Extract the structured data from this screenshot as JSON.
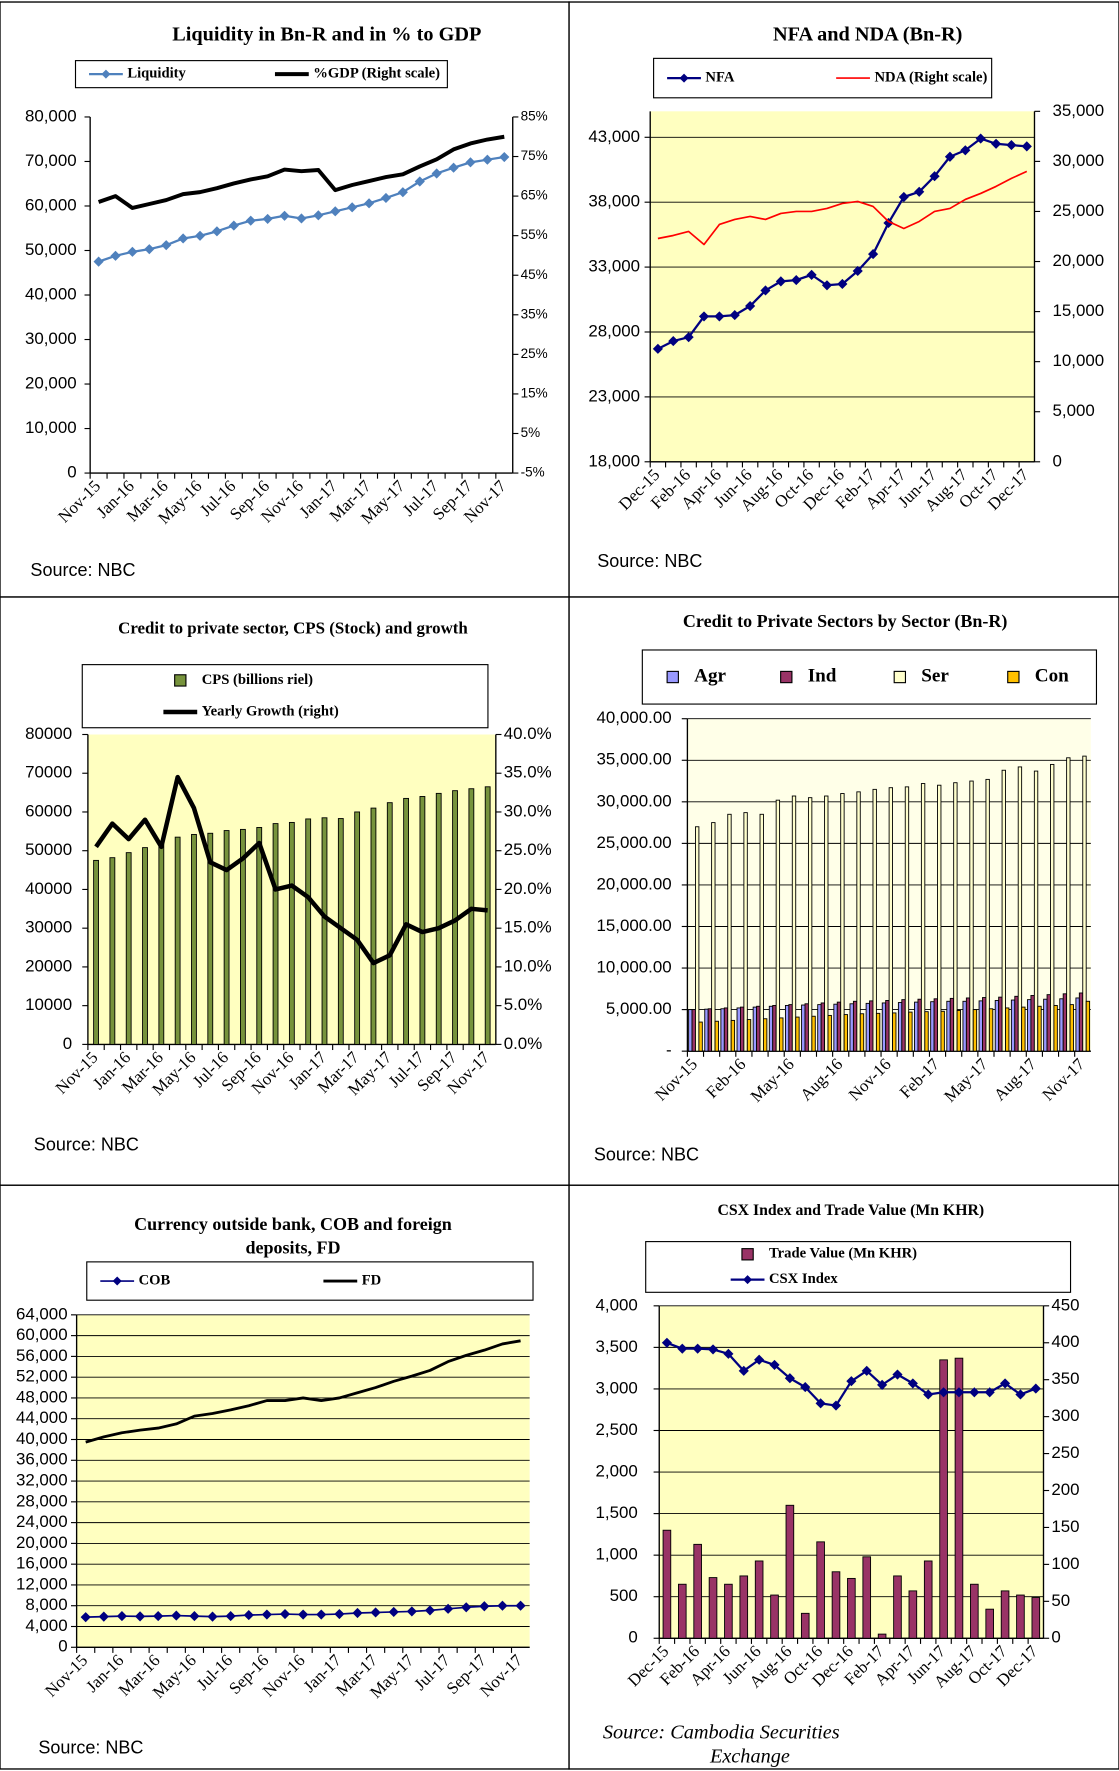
{
  "chart_data": [
    {
      "type": "line",
      "title": "Liquidity in Bn-R and in % to GDP",
      "categories": [
        "Nov-15",
        null,
        "Jan-16",
        null,
        "Mar-16",
        null,
        "May-16",
        null,
        "Jul-16",
        null,
        "Sep-16",
        null,
        "Nov-16",
        null,
        "Jan-17",
        null,
        "Mar-17",
        null,
        "May-17",
        null,
        "Jul-17",
        null,
        "Sep-17",
        null,
        "Nov-17"
      ],
      "series": [
        {
          "name": "Liquidity",
          "color": "#4f81bd",
          "marker": "diamond",
          "values": [
            47500,
            48800,
            49700,
            50300,
            51200,
            52700,
            53300,
            54300,
            55600,
            56700,
            57100,
            57800,
            57200,
            57900,
            58800,
            59700,
            60600,
            61800,
            63100,
            65500,
            67300,
            68600,
            69800,
            70400,
            71000
          ]
        },
        {
          "name": "%GDP (Right scale)",
          "color": "#000000",
          "axis": "y2",
          "values": [
            63.5,
            65,
            62,
            63,
            64,
            65.5,
            66,
            67,
            68.2,
            69.2,
            70,
            71.7,
            71.3,
            71.6,
            66.5,
            67.8,
            68.8,
            69.8,
            70.5,
            72.5,
            74.3,
            76.8,
            78.3,
            79.3,
            80
          ]
        }
      ],
      "ylim": [
        0,
        80000
      ],
      "yticks": [
        0,
        {
          "value": 10000,
          "label": "10,000"
        },
        {
          "value": 20000,
          "label": "20,000"
        },
        {
          "value": 30000,
          "label": "30,000"
        },
        {
          "value": 40000,
          "label": "40,000"
        },
        {
          "value": 50000,
          "label": "50,000"
        },
        {
          "value": 60000,
          "label": "60,000"
        },
        {
          "value": 70000,
          "label": "70,000"
        },
        {
          "value": 80000,
          "label": "80,000"
        }
      ],
      "y2lim": [
        -5,
        85
      ],
      "y2ticks": [
        {
          "value": -5,
          "label": "-5%"
        },
        {
          "value": 5,
          "label": "5%"
        },
        {
          "value": 15,
          "label": "15%"
        },
        {
          "value": 25,
          "label": "25%"
        },
        {
          "value": 35,
          "label": "35%"
        },
        {
          "value": 45,
          "label": "45%"
        },
        {
          "value": 55,
          "label": "55%"
        },
        {
          "value": 65,
          "label": "65%"
        },
        {
          "value": 75,
          "label": "75%"
        },
        {
          "value": 85,
          "label": "85%"
        }
      ],
      "grid": false,
      "source": "Source: NBC"
    },
    {
      "type": "line",
      "title": "NFA and NDA (Bn-R)",
      "categories": [
        "Dec-15",
        null,
        "Feb-16",
        null,
        "Apr-16",
        null,
        "Jun-16",
        null,
        "Aug-16",
        null,
        "Oct-16",
        null,
        "Dec-16",
        null,
        "Feb-17",
        null,
        "Apr-17",
        null,
        "Jun-17",
        null,
        "Aug-17",
        null,
        "Oct-17",
        null,
        "Dec-17"
      ],
      "series": [
        {
          "name": "NFA",
          "color": "#000080",
          "marker": "diamond",
          "values": [
            26700,
            27300,
            27600,
            29200,
            29200,
            29300,
            30000,
            31200,
            31900,
            32000,
            32400,
            31600,
            31700,
            32700,
            34000,
            36400,
            38400,
            38800,
            40000,
            41500,
            42000,
            42900,
            42500,
            42400,
            42300
          ]
        },
        {
          "name": "NDA (Right scale)",
          "color": "#ff0000",
          "axis": "y2",
          "values": [
            22300,
            22600,
            23000,
            21700,
            23700,
            24200,
            24500,
            24200,
            24800,
            25000,
            25000,
            25300,
            25800,
            26000,
            25500,
            24000,
            23300,
            24000,
            25000,
            25300,
            26200,
            26800,
            27500,
            28300,
            29000
          ]
        }
      ],
      "ylim": [
        18000,
        45000
      ],
      "yticks": [
        {
          "value": 18000,
          "label": "18,000"
        },
        {
          "value": 23000,
          "label": "23,000"
        },
        {
          "value": 28000,
          "label": "28,000"
        },
        {
          "value": 33000,
          "label": "33,000"
        },
        {
          "value": 38000,
          "label": "38,000"
        },
        {
          "value": 43000,
          "label": "43,000"
        }
      ],
      "y2lim": [
        0,
        35000
      ],
      "y2ticks": [
        0,
        {
          "value": 5000,
          "label": "5,000"
        },
        {
          "value": 10000,
          "label": "10,000"
        },
        {
          "value": 15000,
          "label": "15,000"
        },
        {
          "value": 20000,
          "label": "20,000"
        },
        {
          "value": 25000,
          "label": "25,000"
        },
        {
          "value": 30000,
          "label": "30,000"
        },
        {
          "value": 35000,
          "label": "35,000"
        }
      ],
      "grid": true,
      "plot_background": "#ffffc0",
      "source": "Source: NBC"
    },
    {
      "type": "bar",
      "title": "Credit to private sector, CPS (Stock) and growth",
      "categories": [
        "Nov-15",
        null,
        "Jan-16",
        null,
        "Mar-16",
        null,
        "May-16",
        null,
        "Jul-16",
        null,
        "Sep-16",
        null,
        "Nov-16",
        null,
        "Jan-17",
        null,
        "Mar-17",
        null,
        "May-17",
        null,
        "Jul-17",
        null,
        "Sep-17",
        null,
        "Nov-17"
      ],
      "series": [
        {
          "name": "CPS (billions riel)",
          "type": "bar",
          "color": "#77933c",
          "values": [
            47500,
            48200,
            49500,
            50800,
            51500,
            53500,
            54200,
            54500,
            55200,
            55500,
            56000,
            57000,
            57300,
            58200,
            58500,
            58300,
            60000,
            61000,
            62400,
            63500,
            64000,
            64800,
            65500,
            66000,
            66500
          ]
        },
        {
          "name": "Yearly Growth (right)",
          "type": "line",
          "color": "#000000",
          "axis": "y2",
          "values": [
            25.5,
            28.5,
            26.5,
            29,
            25.5,
            34.5,
            30.5,
            23.5,
            22.5,
            24,
            26,
            20,
            20.5,
            19,
            16.5,
            15,
            13.5,
            10.5,
            11.5,
            15.5,
            14.5,
            15,
            16,
            17.5,
            17.3
          ]
        }
      ],
      "ylim": [
        0,
        80000
      ],
      "yticks": [
        0,
        10000,
        20000,
        30000,
        40000,
        50000,
        60000,
        70000,
        80000
      ],
      "y2lim": [
        0,
        40
      ],
      "y2ticks": [
        {
          "value": 0,
          "label": "0.0%"
        },
        {
          "value": 5,
          "label": "5.0%"
        },
        {
          "value": 10,
          "label": "10.0%"
        },
        {
          "value": 15,
          "label": "15.0%"
        },
        {
          "value": 20,
          "label": "20.0%"
        },
        {
          "value": 25,
          "label": "25.0%"
        },
        {
          "value": 30,
          "label": "30.0%"
        },
        {
          "value": 35,
          "label": "35.0%"
        },
        {
          "value": 40,
          "label": "40.0%"
        }
      ],
      "grid": false,
      "plot_background": "#ffffc0",
      "source": "Source: NBC"
    },
    {
      "type": "bar",
      "title": "Credit to Private Sectors by Sector (Bn-R)",
      "categories": [
        "Nov-15",
        null,
        null,
        "Feb-16",
        null,
        null,
        "May-16",
        null,
        null,
        "Aug-16",
        null,
        null,
        "Nov-16",
        null,
        null,
        "Feb-17",
        null,
        null,
        "May-17",
        null,
        null,
        "Aug-17",
        null,
        null,
        "Nov-17"
      ],
      "series": [
        {
          "name": "Agr",
          "type": "bar",
          "color": "#9999ff",
          "values": [
            5000,
            5050,
            5100,
            5200,
            5300,
            5400,
            5500,
            5550,
            5600,
            5650,
            5700,
            5750,
            5800,
            5850,
            5900,
            5950,
            6000,
            6000,
            6050,
            6100,
            6150,
            6200,
            6250,
            6300,
            6400
          ]
        },
        {
          "name": "Ind",
          "type": "bar",
          "color": "#993366",
          "values": [
            5000,
            5100,
            5200,
            5300,
            5400,
            5500,
            5600,
            5700,
            5800,
            5900,
            6000,
            6050,
            6100,
            6200,
            6250,
            6300,
            6350,
            6400,
            6450,
            6500,
            6600,
            6700,
            6800,
            6900,
            7000
          ]
        },
        {
          "name": "Ser",
          "type": "bar",
          "color": "#ffffcc",
          "values": [
            27000,
            27500,
            28500,
            28700,
            28500,
            30200,
            30700,
            30500,
            30700,
            31000,
            31200,
            31500,
            31700,
            31800,
            32200,
            32000,
            32300,
            32500,
            32700,
            33800,
            34200,
            33700,
            34500,
            35300,
            35500
          ]
        },
        {
          "name": "Con",
          "type": "bar",
          "color": "#ffc000",
          "values": [
            3500,
            3600,
            3700,
            3800,
            3900,
            4000,
            4100,
            4200,
            4300,
            4400,
            4500,
            4550,
            4600,
            4700,
            4750,
            4800,
            4900,
            5000,
            5100,
            5200,
            5300,
            5400,
            5500,
            5600,
            6000
          ]
        }
      ],
      "ylim": [
        0,
        40000
      ],
      "yticks": [
        {
          "value": 0,
          "label": "-"
        },
        {
          "value": 5000,
          "label": "5,000.00"
        },
        {
          "value": 10000,
          "label": "10,000.00"
        },
        {
          "value": 15000,
          "label": "15,000.00"
        },
        {
          "value": 20000,
          "label": "20,000.00"
        },
        {
          "value": 25000,
          "label": "25,000.00"
        },
        {
          "value": 30000,
          "label": "30,000.00"
        },
        {
          "value": 35000,
          "label": "35,000.00"
        },
        {
          "value": 40000,
          "label": "40,000.00"
        }
      ],
      "grid": true,
      "plot_background": "#ffffe8",
      "source": "Source: NBC"
    },
    {
      "type": "line",
      "title": [
        "Currency outside bank, COB and foreign",
        "deposits, FD"
      ],
      "categories": [
        "Nov-15",
        null,
        "Jan-16",
        null,
        "Mar-16",
        null,
        "May-16",
        null,
        "Jul-16",
        null,
        "Sep-16",
        null,
        "Nov-16",
        null,
        "Jan-17",
        null,
        "Mar-17",
        null,
        "May-17",
        null,
        "Jul-17",
        null,
        "Sep-17",
        null,
        "Nov-17"
      ],
      "series": [
        {
          "name": "COB",
          "color": "#000080",
          "marker": "diamond",
          "values": [
            5800,
            5900,
            6000,
            5950,
            6000,
            6100,
            6000,
            5900,
            6000,
            6200,
            6300,
            6400,
            6300,
            6300,
            6400,
            6600,
            6700,
            6800,
            6900,
            7100,
            7400,
            7700,
            7900,
            8000,
            8000
          ]
        },
        {
          "name": "FD",
          "color": "#000000",
          "values": [
            39500,
            40500,
            41300,
            41800,
            42200,
            43000,
            44500,
            45000,
            45700,
            46500,
            47500,
            47500,
            48000,
            47500,
            48000,
            49000,
            50000,
            51200,
            52200,
            53300,
            55000,
            56200,
            57200,
            58400,
            59000
          ]
        }
      ],
      "ylim": [
        0,
        64000
      ],
      "yticks": [
        0,
        {
          "value": 4000,
          "label": "4,000"
        },
        {
          "value": 8000,
          "label": "8,000"
        },
        {
          "value": 12000,
          "label": "12,000"
        },
        {
          "value": 16000,
          "label": "16,000"
        },
        {
          "value": 20000,
          "label": "20,000"
        },
        {
          "value": 24000,
          "label": "24,000"
        },
        {
          "value": 28000,
          "label": "28,000"
        },
        {
          "value": 32000,
          "label": "32,000"
        },
        {
          "value": 36000,
          "label": "36,000"
        },
        {
          "value": 40000,
          "label": "40,000"
        },
        {
          "value": 44000,
          "label": "44,000"
        },
        {
          "value": 48000,
          "label": "48,000"
        },
        {
          "value": 52000,
          "label": "52,000"
        },
        {
          "value": 56000,
          "label": "56,000"
        },
        {
          "value": 60000,
          "label": "60,000"
        },
        {
          "value": 64000,
          "label": "64,000"
        }
      ],
      "grid": true,
      "plot_background": "#ffffc0",
      "source": "Source: NBC"
    },
    {
      "type": "bar",
      "title": "CSX Index and Trade Value (Mn KHR)",
      "categories": [
        "Dec-15",
        null,
        "Feb-16",
        null,
        "Apr-16",
        null,
        "Jun-16",
        null,
        "Aug-16",
        null,
        "Oct-16",
        null,
        "Dec-16",
        null,
        "Feb-17",
        null,
        "Apr-17",
        null,
        "Jun-17",
        null,
        "Aug-17",
        null,
        "Oct-17",
        null,
        "Dec-17"
      ],
      "series": [
        {
          "name": "Trade Value (Mn KHR)",
          "type": "bar",
          "color": "#993366",
          "values": [
            1300,
            650,
            1130,
            730,
            650,
            750,
            930,
            520,
            1600,
            300,
            1160,
            800,
            720,
            980,
            50,
            750,
            570,
            930,
            3350,
            3370,
            650,
            350,
            570,
            520,
            490
          ]
        },
        {
          "name": "CSX Index",
          "type": "line",
          "color": "#000080",
          "marker": "diamond",
          "axis": "y2",
          "values": [
            400,
            392,
            392,
            391,
            385,
            362,
            377,
            370,
            352,
            340,
            318,
            315,
            348,
            362,
            343,
            357,
            345,
            330,
            333,
            333,
            333,
            333,
            345,
            330,
            338
          ]
        }
      ],
      "ylim": [
        0,
        4000
      ],
      "yticks": [
        0,
        500,
        {
          "value": 1000,
          "label": "1,000"
        },
        {
          "value": 1500,
          "label": "1,500"
        },
        {
          "value": 2000,
          "label": "2,000"
        },
        {
          "value": 2500,
          "label": "2,500"
        },
        {
          "value": 3000,
          "label": "3,000"
        },
        {
          "value": 3500,
          "label": "3,500"
        },
        {
          "value": 4000,
          "label": "4,000"
        }
      ],
      "y2lim": [
        0,
        450
      ],
      "y2ticks": [
        0,
        50,
        100,
        150,
        200,
        250,
        300,
        350,
        400,
        450
      ],
      "grid": true,
      "plot_background": "#ffffc0",
      "source": [
        "Source: Cambodia Securities",
        "Exchange"
      ]
    }
  ]
}
